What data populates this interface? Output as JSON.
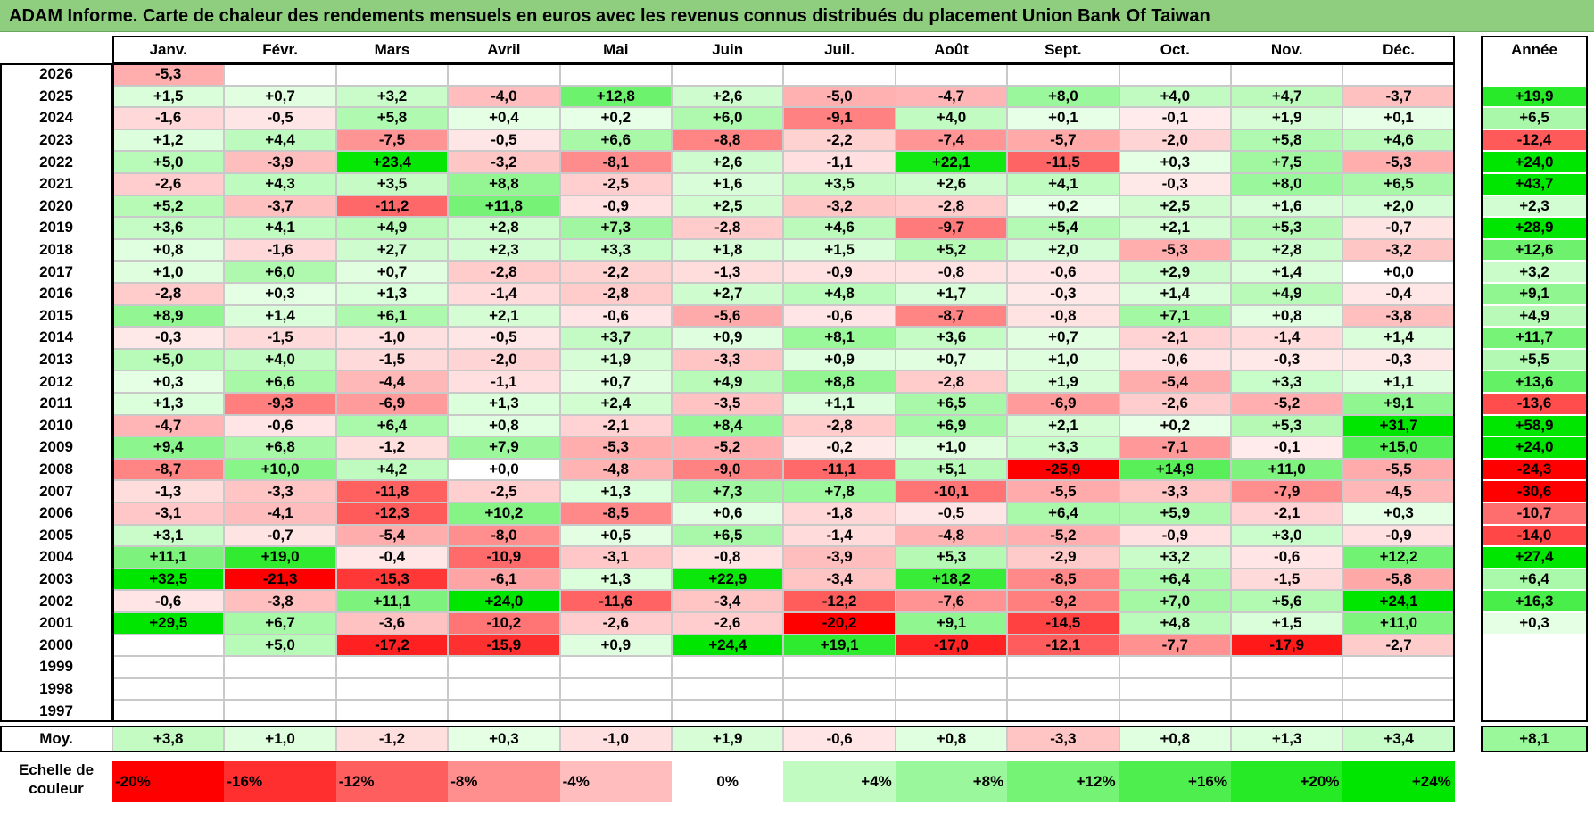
{
  "title": "ADAM Informe. Carte de chaleur des rendements mensuels en euros avec les revenus connus distribués du placement Union Bank Of Taiwan",
  "chart_data": {
    "type": "heatmap",
    "title": "ADAM Informe. Carte de chaleur des rendements mensuels en euros avec les revenus connus distribués du placement Union Bank Of Taiwan",
    "columns": [
      "Janv.",
      "Févr.",
      "Mars",
      "Avril",
      "Mai",
      "Juin",
      "Juil.",
      "Août",
      "Sept.",
      "Oct.",
      "Nov.",
      "Déc."
    ],
    "year_column_label": "Année",
    "rows": [
      {
        "year": "2026",
        "months": [
          "-5,3",
          "",
          "",
          "",
          "",
          "",
          "",
          "",
          "",
          "",
          "",
          ""
        ],
        "annual": ""
      },
      {
        "year": "2025",
        "months": [
          "+1,5",
          "+0,7",
          "+3,2",
          "-4,0",
          "+12,8",
          "+2,6",
          "-5,0",
          "-4,7",
          "+8,0",
          "+4,0",
          "+4,7",
          "-3,7"
        ],
        "annual": "+19,9"
      },
      {
        "year": "2024",
        "months": [
          "-1,6",
          "-0,5",
          "+5,8",
          "+0,4",
          "+0,2",
          "+6,0",
          "-9,1",
          "+4,0",
          "+0,1",
          "-0,1",
          "+1,9",
          "+0,1"
        ],
        "annual": "+6,5"
      },
      {
        "year": "2023",
        "months": [
          "+1,2",
          "+4,4",
          "-7,5",
          "-0,5",
          "+6,6",
          "-8,8",
          "-2,2",
          "-7,4",
          "-5,7",
          "-2,0",
          "+5,8",
          "+4,6"
        ],
        "annual": "-12,4"
      },
      {
        "year": "2022",
        "months": [
          "+5,0",
          "-3,9",
          "+23,4",
          "-3,2",
          "-8,1",
          "+2,6",
          "-1,1",
          "+22,1",
          "-11,5",
          "+0,3",
          "+7,5",
          "-5,3"
        ],
        "annual": "+24,0"
      },
      {
        "year": "2021",
        "months": [
          "-2,6",
          "+4,3",
          "+3,5",
          "+8,8",
          "-2,5",
          "+1,6",
          "+3,5",
          "+2,6",
          "+4,1",
          "-0,3",
          "+8,0",
          "+6,5"
        ],
        "annual": "+43,7"
      },
      {
        "year": "2020",
        "months": [
          "+5,2",
          "-3,7",
          "-11,2",
          "+11,8",
          "-0,9",
          "+2,5",
          "-3,2",
          "-2,8",
          "+0,2",
          "+2,5",
          "+1,6",
          "+2,0"
        ],
        "annual": "+2,3"
      },
      {
        "year": "2019",
        "months": [
          "+3,6",
          "+4,1",
          "+4,9",
          "+2,8",
          "+7,3",
          "-2,8",
          "+4,6",
          "-9,7",
          "+5,4",
          "+2,1",
          "+5,3",
          "-0,7"
        ],
        "annual": "+28,9"
      },
      {
        "year": "2018",
        "months": [
          "+0,8",
          "-1,6",
          "+2,7",
          "+2,3",
          "+3,3",
          "+1,8",
          "+1,5",
          "+5,2",
          "+2,0",
          "-5,3",
          "+2,8",
          "-3,2"
        ],
        "annual": "+12,6"
      },
      {
        "year": "2017",
        "months": [
          "+1,0",
          "+6,0",
          "+0,7",
          "-2,8",
          "-2,2",
          "-1,3",
          "-0,9",
          "-0,8",
          "-0,6",
          "+2,9",
          "+1,4",
          "+0,0"
        ],
        "annual": "+3,2"
      },
      {
        "year": "2016",
        "months": [
          "-2,8",
          "+0,3",
          "+1,3",
          "-1,4",
          "-2,8",
          "+2,7",
          "+4,8",
          "+1,7",
          "-0,3",
          "+1,4",
          "+4,9",
          "-0,4"
        ],
        "annual": "+9,1"
      },
      {
        "year": "2015",
        "months": [
          "+8,9",
          "+1,4",
          "+6,1",
          "+2,1",
          "-0,6",
          "-5,6",
          "-0,6",
          "-8,7",
          "-0,8",
          "+7,1",
          "+0,8",
          "-3,8"
        ],
        "annual": "+4,9"
      },
      {
        "year": "2014",
        "months": [
          "-0,3",
          "-1,5",
          "-1,0",
          "-0,5",
          "+3,7",
          "+0,9",
          "+8,1",
          "+3,6",
          "+0,7",
          "-2,1",
          "-1,4",
          "+1,4"
        ],
        "annual": "+11,7"
      },
      {
        "year": "2013",
        "months": [
          "+5,0",
          "+4,0",
          "-1,5",
          "-2,0",
          "+1,9",
          "-3,3",
          "+0,9",
          "+0,7",
          "+1,0",
          "-0,6",
          "-0,3",
          "-0,3"
        ],
        "annual": "+5,5"
      },
      {
        "year": "2012",
        "months": [
          "+0,3",
          "+6,6",
          "-4,4",
          "-1,1",
          "+0,7",
          "+4,9",
          "+8,8",
          "-2,8",
          "+1,9",
          "-5,4",
          "+3,3",
          "+1,1"
        ],
        "annual": "+13,6"
      },
      {
        "year": "2011",
        "months": [
          "+1,3",
          "-9,3",
          "-6,9",
          "+1,3",
          "+2,4",
          "-3,5",
          "+1,1",
          "+6,5",
          "-6,9",
          "-2,6",
          "-5,2",
          "+9,1"
        ],
        "annual": "-13,6"
      },
      {
        "year": "2010",
        "months": [
          "-4,7",
          "-0,6",
          "+6,4",
          "+0,8",
          "-2,1",
          "+8,4",
          "-2,8",
          "+6,9",
          "+2,1",
          "+0,2",
          "+5,3",
          "+31,7"
        ],
        "annual": "+58,9"
      },
      {
        "year": "2009",
        "months": [
          "+9,4",
          "+6,8",
          "-1,2",
          "+7,9",
          "-5,3",
          "-5,2",
          "-0,2",
          "+1,0",
          "+3,3",
          "-7,1",
          "-0,1",
          "+15,0"
        ],
        "annual": "+24,0"
      },
      {
        "year": "2008",
        "months": [
          "-8,7",
          "+10,0",
          "+4,2",
          "+0,0",
          "-4,8",
          "-9,0",
          "-11,1",
          "+5,1",
          "-25,9",
          "+14,9",
          "+11,0",
          "-5,5"
        ],
        "annual": "-24,3"
      },
      {
        "year": "2007",
        "months": [
          "-1,3",
          "-3,3",
          "-11,8",
          "-2,5",
          "+1,3",
          "+7,3",
          "+7,8",
          "-10,1",
          "-5,5",
          "-3,3",
          "-7,9",
          "-4,5"
        ],
        "annual": "-30,6"
      },
      {
        "year": "2006",
        "months": [
          "-3,1",
          "-4,1",
          "-12,3",
          "+10,2",
          "-8,5",
          "+0,6",
          "-1,8",
          "-0,5",
          "+6,4",
          "+5,9",
          "-2,1",
          "+0,3"
        ],
        "annual": "-10,7"
      },
      {
        "year": "2005",
        "months": [
          "+3,1",
          "-0,7",
          "-5,4",
          "-8,0",
          "+0,5",
          "+6,5",
          "-1,4",
          "-4,8",
          "-5,2",
          "-0,9",
          "+3,0",
          "-0,9"
        ],
        "annual": "-14,0"
      },
      {
        "year": "2004",
        "months": [
          "+11,1",
          "+19,0",
          "-0,4",
          "-10,9",
          "-3,1",
          "-0,8",
          "-3,9",
          "+5,3",
          "-2,9",
          "+3,2",
          "-0,6",
          "+12,2"
        ],
        "annual": "+27,4"
      },
      {
        "year": "2003",
        "months": [
          "+32,5",
          "-21,3",
          "-15,3",
          "-6,1",
          "+1,3",
          "+22,9",
          "-3,4",
          "+18,2",
          "-8,5",
          "+6,4",
          "-1,5",
          "-5,8"
        ],
        "annual": "+6,4"
      },
      {
        "year": "2002",
        "months": [
          "-0,6",
          "-3,8",
          "+11,1",
          "+24,0",
          "-11,6",
          "-3,4",
          "-12,2",
          "-7,6",
          "-9,2",
          "+7,0",
          "+5,6",
          "+24,1"
        ],
        "annual": "+16,3"
      },
      {
        "year": "2001",
        "months": [
          "+29,5",
          "+6,7",
          "-3,6",
          "-10,2",
          "-2,6",
          "-2,6",
          "-20,2",
          "+9,1",
          "-14,5",
          "+4,8",
          "+1,5",
          "+11,0"
        ],
        "annual": "+0,3"
      },
      {
        "year": "2000",
        "months": [
          "",
          "+5,0",
          "-17,2",
          "-15,9",
          "+0,9",
          "+24,4",
          "+19,1",
          "-17,0",
          "-12,1",
          "-7,7",
          "-17,9",
          "-2,7"
        ],
        "annual": ""
      },
      {
        "year": "1999",
        "months": [
          "",
          "",
          "",
          "",
          "",
          "",
          "",
          "",
          "",
          "",
          "",
          ""
        ],
        "annual": ""
      },
      {
        "year": "1998",
        "months": [
          "",
          "",
          "",
          "",
          "",
          "",
          "",
          "",
          "",
          "",
          "",
          ""
        ],
        "annual": ""
      },
      {
        "year": "1997",
        "months": [
          "",
          "",
          "",
          "",
          "",
          "",
          "",
          "",
          "",
          "",
          "",
          ""
        ],
        "annual": ""
      }
    ],
    "average": {
      "label": "Moy.",
      "months": [
        "+3,8",
        "+1,0",
        "-1,2",
        "+0,3",
        "-1,0",
        "+1,9",
        "-0,6",
        "+0,8",
        "-3,3",
        "+0,8",
        "+1,3",
        "+3,4"
      ],
      "annual": "+8,1"
    },
    "scale": {
      "label": "Echelle de couleur",
      "steps": [
        "-20%",
        "-16%",
        "-12%",
        "-8%",
        "-4%",
        "0%",
        "+4%",
        "+8%",
        "+12%",
        "+16%",
        "+20%",
        "+24%"
      ],
      "values": [
        -20,
        -16,
        -12,
        -8,
        -4,
        0,
        4,
        8,
        12,
        16,
        20,
        24
      ]
    }
  },
  "colors": {
    "title_bg": "#8fce7f",
    "neg_max": "#ff0000",
    "pos_max": "#00e600",
    "neutral": "#ffffff"
  }
}
